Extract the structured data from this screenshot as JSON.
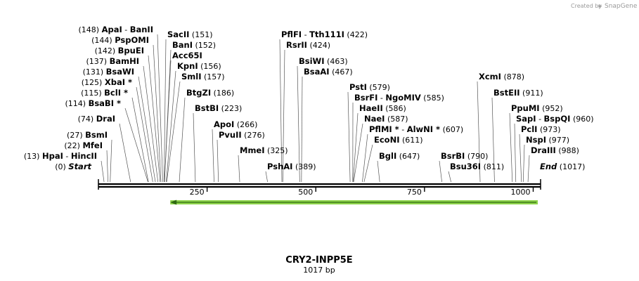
{
  "watermark": {
    "prefix": "Created by",
    "brand": "SnapGene"
  },
  "plasmid": {
    "name": "CRY2-INPP5E",
    "length_label": "1017 bp",
    "length_bp": 1017
  },
  "feature": {
    "name": "CRY2-INPP5E feature arrow",
    "start_bp": 162,
    "end_bp": 1017,
    "direction": "reverse",
    "color": "#8dd34a"
  },
  "axis": {
    "ticks": [
      250,
      500,
      750,
      1000
    ]
  },
  "sites": [
    {
      "pos": "(148)",
      "name": "ApaI",
      "sep": "-",
      "name2": "BanII",
      "bp": 148
    },
    {
      "pos": "(144)",
      "name": "PspOMI",
      "bp": 144
    },
    {
      "pos": "(142)",
      "name": "BpuEI",
      "bp": 142
    },
    {
      "pos": "(137)",
      "name": "BamHI",
      "bp": 137
    },
    {
      "pos": "(131)",
      "name": "BsaWI",
      "bp": 131
    },
    {
      "pos": "(125)",
      "name": "XbaI *",
      "bp": 125
    },
    {
      "pos": "(115)",
      "name": "BclI *",
      "bp": 115
    },
    {
      "pos": "(114)",
      "name": "BsaBI *",
      "bp": 114
    },
    {
      "pos": "(74)",
      "name": "DraI",
      "bp": 74
    },
    {
      "pos": "(27)",
      "name": "BsmI",
      "bp": 27
    },
    {
      "pos": "(22)",
      "name": "MfeI",
      "bp": 22
    },
    {
      "pos": "(13)",
      "name": "HpaI",
      "sep": "-",
      "name2": "HincII",
      "bp": 13
    },
    {
      "pos": "(0)",
      "name": "Start",
      "bp": 0
    },
    {
      "name": "SacII",
      "pos": "(151)",
      "bp": 151
    },
    {
      "name": "BanI",
      "pos": "(152)",
      "bp": 152
    },
    {
      "name": "Acc65I",
      "pos": "",
      "bp": 152
    },
    {
      "name": "KpnI",
      "pos": "(156)",
      "bp": 156
    },
    {
      "name": "SmlI",
      "pos": "(157)",
      "bp": 157
    },
    {
      "name": "BtgZI",
      "pos": "(186)",
      "bp": 186
    },
    {
      "name": "BstBI",
      "pos": "(223)",
      "bp": 223
    },
    {
      "name": "ApoI",
      "pos": "(266)",
      "bp": 266
    },
    {
      "name": "PvuII",
      "pos": "(276)",
      "bp": 276
    },
    {
      "name": "MmeI",
      "pos": "(325)",
      "bp": 325
    },
    {
      "name": "PflFI",
      "sep": "-",
      "name2": "Tth111I",
      "pos": "(422)",
      "bp": 422
    },
    {
      "name": "RsrII",
      "pos": "(424)",
      "bp": 424
    },
    {
      "name": "BsiWI",
      "pos": "(463)",
      "bp": 463
    },
    {
      "name": "BsaAI",
      "pos": "(467)",
      "bp": 467
    },
    {
      "name": "PshAI",
      "pos": "(389)",
      "bp": 389
    },
    {
      "name": "PstI",
      "pos": "(579)",
      "bp": 579
    },
    {
      "name": "BsrFI",
      "sep": "-",
      "name2": "NgoMIV",
      "pos": "(585)",
      "bp": 585
    },
    {
      "name": "HaeII",
      "pos": "(586)",
      "bp": 586
    },
    {
      "name": "NaeI",
      "pos": "(587)",
      "bp": 587
    },
    {
      "name": "PflMI *",
      "sep": "-",
      "name2": "AlwNI *",
      "pos": "(607)",
      "bp": 607
    },
    {
      "name": "EcoNI",
      "pos": "(611)",
      "bp": 611
    },
    {
      "name": "BglI",
      "pos": "(647)",
      "bp": 647
    },
    {
      "name": "BsrBI",
      "pos": "(790)",
      "bp": 790
    },
    {
      "name": "Bsu36I",
      "pos": "(811)",
      "bp": 811
    },
    {
      "name": "XcmI",
      "pos": "(878)",
      "bp": 878
    },
    {
      "name": "BstEII",
      "pos": "(911)",
      "bp": 911
    },
    {
      "name": "PpuMI",
      "pos": "(952)",
      "bp": 952
    },
    {
      "name": "SapI",
      "sep": "-",
      "name2": "BspQI",
      "pos": "(960)",
      "bp": 960
    },
    {
      "name": "PclI",
      "pos": "(973)",
      "bp": 973
    },
    {
      "name": "NspI",
      "pos": "(977)",
      "bp": 977
    },
    {
      "name": "DraIII",
      "pos": "(988)",
      "bp": 988
    },
    {
      "name": "End",
      "pos": "(1017)",
      "bp": 1017
    }
  ]
}
